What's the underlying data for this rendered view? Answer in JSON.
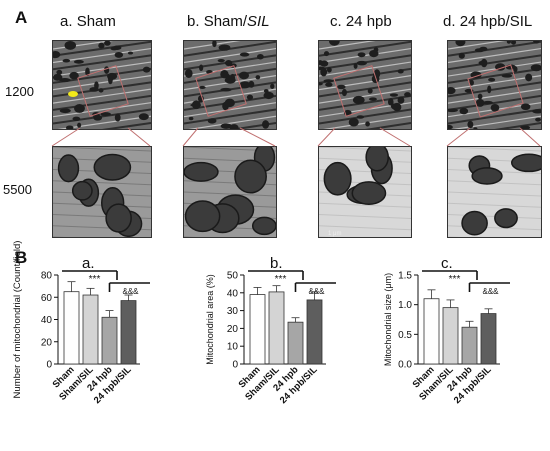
{
  "figure": {
    "panel_a_letter": "A",
    "panel_b_letter": "B",
    "columns": [
      {
        "title_prefix": "a. ",
        "title_main": "Sham",
        "title_italic": ""
      },
      {
        "title_prefix": "b. ",
        "title_main": "Sham/",
        "title_italic": "SIL"
      },
      {
        "title_prefix": "c. ",
        "title_main": "24 hpb",
        "title_italic": ""
      },
      {
        "title_prefix": "d. ",
        "title_main": "24 hpb/SIL",
        "title_italic": ""
      }
    ],
    "row_labels": [
      "1200",
      "5500"
    ],
    "scale_bar_label": "1 μm"
  },
  "colors": {
    "bar_sham": "#ffffff",
    "bar_sham_sil": "#d4d4d4",
    "bar_24hpb": "#a6a6a6",
    "bar_24hpb_sil": "#5e5e5e",
    "zoom_box": "#c07070",
    "em_highlight": "#f2ea1a"
  },
  "chart_data": [
    {
      "type": "bar",
      "panel_label": "a.",
      "categories": [
        "Sham",
        "Sham/SIL",
        "24 hpb",
        "24 hpb/SIL"
      ],
      "values": [
        65,
        62,
        42,
        57
      ],
      "errors": [
        9,
        6,
        6,
        5
      ],
      "ylabel": "Number of mitochondrial  (Count/field)",
      "ylim": [
        0,
        80
      ],
      "yticks": [
        0,
        20,
        40,
        60,
        80
      ],
      "annotations": [
        {
          "text": "***",
          "between": [
            "Sham",
            "24 hpb"
          ]
        },
        {
          "text": "&&&",
          "between": [
            "24 hpb",
            "24 hpb/SIL"
          ]
        }
      ]
    },
    {
      "type": "bar",
      "panel_label": "b.",
      "categories": [
        "Sham",
        "Sham/SIL",
        "24 hpb",
        "24 hpb/SIL"
      ],
      "values": [
        39,
        40.5,
        23.5,
        36
      ],
      "errors": [
        4,
        3.5,
        2.5,
        4.5
      ],
      "ylabel": "Mitochondrial area (%)",
      "ylim": [
        0,
        50
      ],
      "yticks": [
        0,
        10,
        20,
        30,
        40,
        50
      ],
      "annotations": [
        {
          "text": "***",
          "between": [
            "Sham",
            "24 hpb"
          ]
        },
        {
          "text": "&&&",
          "between": [
            "24 hpb",
            "24 hpb/SIL"
          ]
        }
      ]
    },
    {
      "type": "bar",
      "panel_label": "c.",
      "categories": [
        "Sham",
        "Sham/SIL",
        "24 hpb",
        "24 hpb/SIL"
      ],
      "values": [
        1.1,
        0.95,
        0.62,
        0.85
      ],
      "errors": [
        0.15,
        0.13,
        0.1,
        0.08
      ],
      "ylabel": "Mitochondrial size (μm)",
      "ylim": [
        0,
        1.5
      ],
      "yticks": [
        "0.0",
        "0.5",
        "1.0",
        "1.5"
      ],
      "annotations": [
        {
          "text": "***",
          "between": [
            "Sham",
            "24 hpb"
          ]
        },
        {
          "text": "&&&",
          "between": [
            "24 hpb",
            "24 hpb/SIL"
          ]
        }
      ]
    }
  ]
}
